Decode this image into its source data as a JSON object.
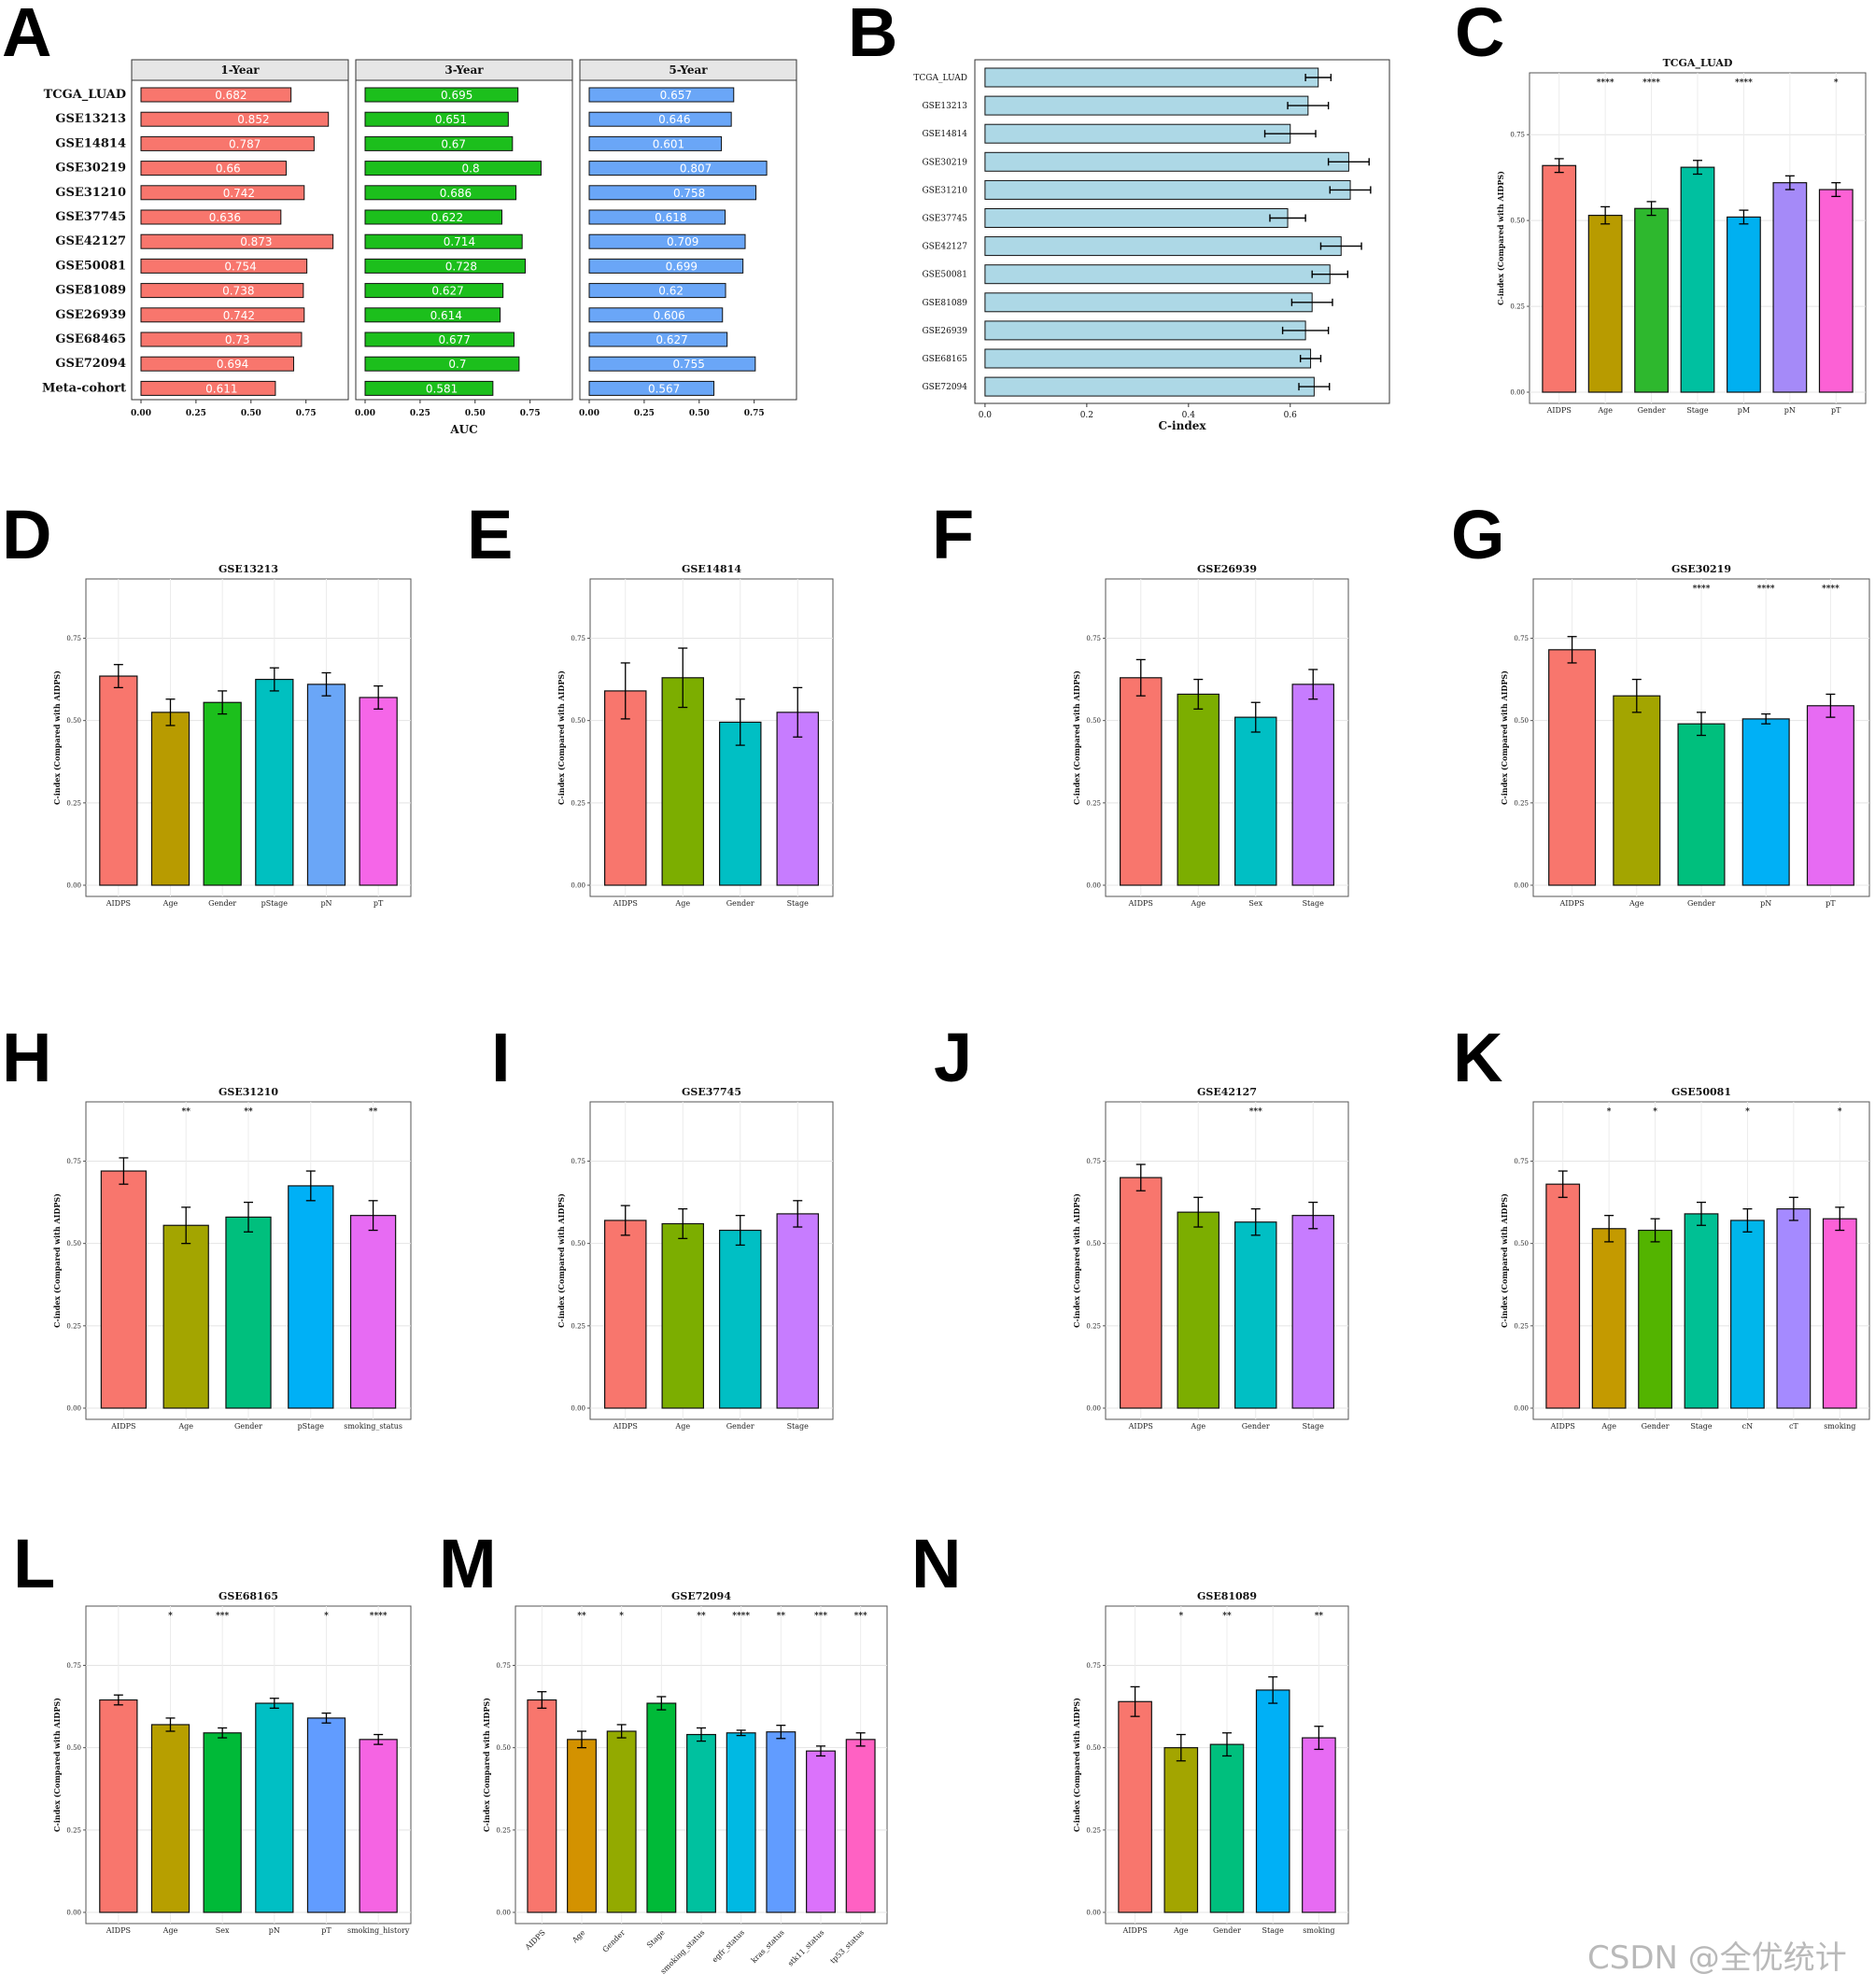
{
  "panel_labels": [
    "A",
    "B",
    "C",
    "D",
    "E",
    "F",
    "G",
    "H",
    "I",
    "J",
    "K",
    "L",
    "M",
    "N"
  ],
  "watermark": "CSDN @全优统计",
  "colors": {
    "year1": "#f8766d",
    "year3": "#1cbf1c",
    "year5": "#6aa6f7",
    "cindex": "#add8e6",
    "palette": {
      "AIDPS": "#f8766d",
      "Age": "#b89b00",
      "Gender": "#2eb82e",
      "Stage": "#00c0a0",
      "pM": "#00b0f0",
      "pN": "#a58af8",
      "pT": "#fc61d5",
      "Sex": "#00bfc4"
    }
  },
  "chart_data": [
    {
      "panel": "A",
      "type": "bar",
      "orientation": "horizontal",
      "xlabel": "AUC",
      "cohorts": [
        "TCGA_LUAD",
        "GSE13213",
        "GSE14814",
        "GSE30219",
        "GSE31210",
        "GSE37745",
        "GSE42127",
        "GSE50081",
        "GSE81089",
        "GSE26939",
        "GSE68465",
        "GSE72094",
        "Meta-cohort"
      ],
      "facets": [
        {
          "name": "1-Year",
          "color": "#f8766d",
          "values": [
            "0.682",
            "0.852",
            "0.787",
            "0.66",
            "0.742",
            "0.636",
            "0.873",
            "0.754",
            "0.738",
            "0.742",
            "0.73",
            "0.694",
            "0.611"
          ]
        },
        {
          "name": "3-Year",
          "color": "#1cbf1c",
          "values": [
            "0.695",
            "0.651",
            "0.67",
            "0.8",
            "0.686",
            "0.622",
            "0.714",
            "0.728",
            "0.627",
            "0.614",
            "0.677",
            "0.7",
            "0.581"
          ]
        },
        {
          "name": "5-Year",
          "color": "#6aa6f7",
          "values": [
            "0.657",
            "0.646",
            "0.601",
            "0.807",
            "0.758",
            "0.618",
            "0.709",
            "0.699",
            "0.62",
            "0.606",
            "0.627",
            "0.755",
            "0.567"
          ]
        }
      ],
      "xticks": [
        "0.00",
        "0.25",
        "0.50",
        "0.75"
      ],
      "xlim": [
        0,
        0.9
      ]
    },
    {
      "panel": "B",
      "type": "bar",
      "orientation": "horizontal",
      "xlabel": "C-index",
      "categories": [
        "TCGA_LUAD",
        "GSE13213",
        "GSE14814",
        "GSE30219",
        "GSE31210",
        "GSE37745",
        "GSE42127",
        "GSE50081",
        "GSE81089",
        "GSE26939",
        "GSE68165",
        "GSE72094"
      ],
      "values": [
        0.655,
        0.635,
        0.6,
        0.715,
        0.718,
        0.595,
        0.7,
        0.678,
        0.643,
        0.63,
        0.64,
        0.647
      ],
      "errors": [
        0.025,
        0.04,
        0.05,
        0.04,
        0.04,
        0.035,
        0.04,
        0.035,
        0.04,
        0.045,
        0.02,
        0.03
      ],
      "xticks": [
        "0.0",
        "0.2",
        "0.4",
        "0.6"
      ],
      "xlim": [
        -0.02,
        0.795
      ]
    },
    {
      "panel": "C",
      "type": "bar",
      "title": "TCGA_LUAD",
      "ylabel": "C-index (Compared with AIDPS)",
      "yticks": [
        "0.00",
        "0.25",
        "0.50",
        "0.75"
      ],
      "ylim": [
        0,
        0.93
      ],
      "categories": [
        "AIDPS",
        "Age",
        "Gender",
        "Stage",
        "pM",
        "pN",
        "pT"
      ],
      "values": [
        0.66,
        0.515,
        0.535,
        0.655,
        0.51,
        0.61,
        0.59
      ],
      "errors": [
        0.02,
        0.025,
        0.02,
        0.02,
        0.02,
        0.02,
        0.02
      ],
      "colors": [
        "#f8766d",
        "#b89b00",
        "#2eb82e",
        "#00c0a0",
        "#00b0f0",
        "#a58af8",
        "#fc61d5"
      ],
      "signif": [
        "",
        "****",
        "****",
        "",
        "****",
        "",
        "*"
      ]
    },
    {
      "panel": "D",
      "type": "bar",
      "title": "GSE13213",
      "ylabel": "C-index (Compared with AIDPS)",
      "yticks": [
        "0.00",
        "0.25",
        "0.50",
        "0.75"
      ],
      "ylim": [
        0,
        0.93
      ],
      "categories": [
        "AIDPS",
        "Age",
        "Gender",
        "pStage",
        "pN",
        "pT"
      ],
      "values": [
        0.635,
        0.525,
        0.555,
        0.625,
        0.61,
        0.57
      ],
      "errors": [
        0.035,
        0.04,
        0.035,
        0.035,
        0.035,
        0.035
      ],
      "colors": [
        "#f8766d",
        "#b89b00",
        "#1cbf1c",
        "#00c0c0",
        "#6aa6f7",
        "#f566e8"
      ],
      "signif": [
        "",
        "",
        "",
        "",
        "",
        ""
      ]
    },
    {
      "panel": "E",
      "type": "bar",
      "title": "GSE14814",
      "ylabel": "C-index (Compared with AIDPS)",
      "yticks": [
        "0.00",
        "0.25",
        "0.50",
        "0.75"
      ],
      "ylim": [
        0,
        0.93
      ],
      "categories": [
        "AIDPS",
        "Age",
        "Gender",
        "Stage"
      ],
      "values": [
        0.59,
        0.63,
        0.495,
        0.525
      ],
      "errors": [
        0.085,
        0.09,
        0.07,
        0.075
      ],
      "colors": [
        "#f8766d",
        "#7cae00",
        "#00bfc4",
        "#c77cff"
      ],
      "signif": [
        "",
        "",
        "",
        ""
      ]
    },
    {
      "panel": "F",
      "type": "bar",
      "title": "GSE26939",
      "ylabel": "C-index (Compared with AIDPS)",
      "yticks": [
        "0.00",
        "0.25",
        "0.50",
        "0.75"
      ],
      "ylim": [
        0,
        0.93
      ],
      "categories": [
        "AIDPS",
        "Age",
        "Sex",
        "Stage"
      ],
      "values": [
        0.63,
        0.58,
        0.51,
        0.61
      ],
      "errors": [
        0.055,
        0.045,
        0.045,
        0.045
      ],
      "colors": [
        "#f8766d",
        "#7cae00",
        "#00bfc4",
        "#c77cff"
      ],
      "signif": [
        "",
        "",
        "",
        ""
      ]
    },
    {
      "panel": "G",
      "type": "bar",
      "title": "GSE30219",
      "ylabel": "C-index (Compared with AIDPS)",
      "yticks": [
        "0.00",
        "0.25",
        "0.50",
        "0.75"
      ],
      "ylim": [
        0,
        0.93
      ],
      "categories": [
        "AIDPS",
        "Age",
        "Gender",
        "pN",
        "pT"
      ],
      "values": [
        0.715,
        0.575,
        0.49,
        0.505,
        0.545
      ],
      "errors": [
        0.04,
        0.05,
        0.035,
        0.015,
        0.035
      ],
      "colors": [
        "#f8766d",
        "#a3a500",
        "#00bf7d",
        "#00b0f6",
        "#e76bf3"
      ],
      "signif": [
        "",
        "",
        "****",
        "****",
        "****"
      ]
    },
    {
      "panel": "H",
      "type": "bar",
      "title": "GSE31210",
      "ylabel": "C-index (Compared with AIDPS)",
      "yticks": [
        "0.00",
        "0.25",
        "0.50",
        "0.75"
      ],
      "ylim": [
        0,
        0.93
      ],
      "categories": [
        "AIDPS",
        "Age",
        "Gender",
        "pStage",
        "smoking_status"
      ],
      "values": [
        0.72,
        0.555,
        0.58,
        0.675,
        0.585
      ],
      "errors": [
        0.04,
        0.055,
        0.045,
        0.045,
        0.045
      ],
      "colors": [
        "#f8766d",
        "#a3a500",
        "#00bf7d",
        "#00b0f6",
        "#e76bf3"
      ],
      "signif": [
        "",
        "**",
        "**",
        "",
        "**"
      ]
    },
    {
      "panel": "I",
      "type": "bar",
      "title": "GSE37745",
      "ylabel": "C-index (Compared with AIDPS)",
      "yticks": [
        "0.00",
        "0.25",
        "0.50",
        "0.75"
      ],
      "ylim": [
        0,
        0.93
      ],
      "categories": [
        "AIDPS",
        "Age",
        "Gender",
        "Stage"
      ],
      "values": [
        0.57,
        0.56,
        0.54,
        0.59
      ],
      "errors": [
        0.045,
        0.045,
        0.045,
        0.04
      ],
      "colors": [
        "#f8766d",
        "#7cae00",
        "#00bfc4",
        "#c77cff"
      ],
      "signif": [
        "",
        "",
        "",
        ""
      ]
    },
    {
      "panel": "J",
      "type": "bar",
      "title": "GSE42127",
      "ylabel": "C-index (Compared with AIDPS)",
      "yticks": [
        "0.00",
        "0.25",
        "0.50",
        "0.75"
      ],
      "ylim": [
        0,
        0.93
      ],
      "categories": [
        "AIDPS",
        "Age",
        "Gender",
        "Stage"
      ],
      "values": [
        0.7,
        0.595,
        0.565,
        0.585
      ],
      "errors": [
        0.04,
        0.045,
        0.04,
        0.04
      ],
      "colors": [
        "#f8766d",
        "#7cae00",
        "#00bfc4",
        "#c77cff"
      ],
      "signif": [
        "",
        "",
        "***",
        ""
      ]
    },
    {
      "panel": "K",
      "type": "bar",
      "title": "GSE50081",
      "ylabel": "C-index (Compared with AIDPS)",
      "yticks": [
        "0.00",
        "0.25",
        "0.50",
        "0.75"
      ],
      "ylim": [
        0,
        0.93
      ],
      "categories": [
        "AIDPS",
        "Age",
        "Gender",
        "Stage",
        "cN",
        "cT",
        "smoking"
      ],
      "values": [
        0.68,
        0.545,
        0.54,
        0.59,
        0.57,
        0.605,
        0.575
      ],
      "errors": [
        0.04,
        0.04,
        0.035,
        0.035,
        0.035,
        0.035,
        0.035
      ],
      "colors": [
        "#f8766d",
        "#c49a00",
        "#53b400",
        "#00c094",
        "#00b6eb",
        "#a58aff",
        "#fb61d7"
      ],
      "signif": [
        "",
        "*",
        "*",
        "",
        "*",
        "",
        "*"
      ]
    },
    {
      "panel": "L",
      "type": "bar",
      "title": "GSE68165",
      "ylabel": "C-index (Compared with AIDPS)",
      "yticks": [
        "0.00",
        "0.25",
        "0.50",
        "0.75"
      ],
      "ylim": [
        0,
        0.93
      ],
      "categories": [
        "AIDPS",
        "Age",
        "Sex",
        "pN",
        "pT",
        "smoking_history"
      ],
      "values": [
        0.645,
        0.57,
        0.545,
        0.635,
        0.59,
        0.525
      ],
      "errors": [
        0.015,
        0.02,
        0.015,
        0.015,
        0.015,
        0.015
      ],
      "colors": [
        "#f8766d",
        "#b79f00",
        "#00ba38",
        "#00bfc4",
        "#619cff",
        "#f564e3"
      ],
      "signif": [
        "",
        "*",
        "***",
        "",
        "*",
        "****"
      ]
    },
    {
      "panel": "M",
      "type": "bar",
      "title": "GSE72094",
      "ylabel": "C-index (Compared with AIDPS)",
      "yticks": [
        "0.00",
        "0.25",
        "0.50",
        "0.75"
      ],
      "ylim": [
        0,
        0.93
      ],
      "categories": [
        "AIDPS",
        "Age",
        "Gender",
        "Stage",
        "smoking_status",
        "egfr_status",
        "kras_status",
        "stk11_status",
        "tp53_status"
      ],
      "values": [
        0.645,
        0.525,
        0.55,
        0.635,
        0.54,
        0.545,
        0.548,
        0.49,
        0.525
      ],
      "errors": [
        0.025,
        0.025,
        0.02,
        0.02,
        0.02,
        0.008,
        0.02,
        0.015,
        0.02
      ],
      "colors": [
        "#f8766d",
        "#d39200",
        "#93aa00",
        "#00ba38",
        "#00c19f",
        "#00b9e3",
        "#619cff",
        "#db72fb",
        "#ff61c3"
      ],
      "signif": [
        "",
        "**",
        "*",
        "",
        "**",
        "****",
        "**",
        "***",
        "***"
      ]
    },
    {
      "panel": "N",
      "type": "bar",
      "title": "GSE81089",
      "ylabel": "C-index (Compared with AIDPS)",
      "yticks": [
        "0.00",
        "0.25",
        "0.50",
        "0.75"
      ],
      "ylim": [
        0,
        0.93
      ],
      "categories": [
        "AIDPS",
        "Age",
        "Gender",
        "Stage",
        "smoking"
      ],
      "values": [
        0.64,
        0.5,
        0.51,
        0.675,
        0.53
      ],
      "errors": [
        0.045,
        0.04,
        0.035,
        0.04,
        0.035
      ],
      "colors": [
        "#f8766d",
        "#a3a500",
        "#00bf7d",
        "#00b0f6",
        "#e76bf3"
      ],
      "signif": [
        "",
        "*",
        "**",
        "",
        "**"
      ]
    }
  ]
}
